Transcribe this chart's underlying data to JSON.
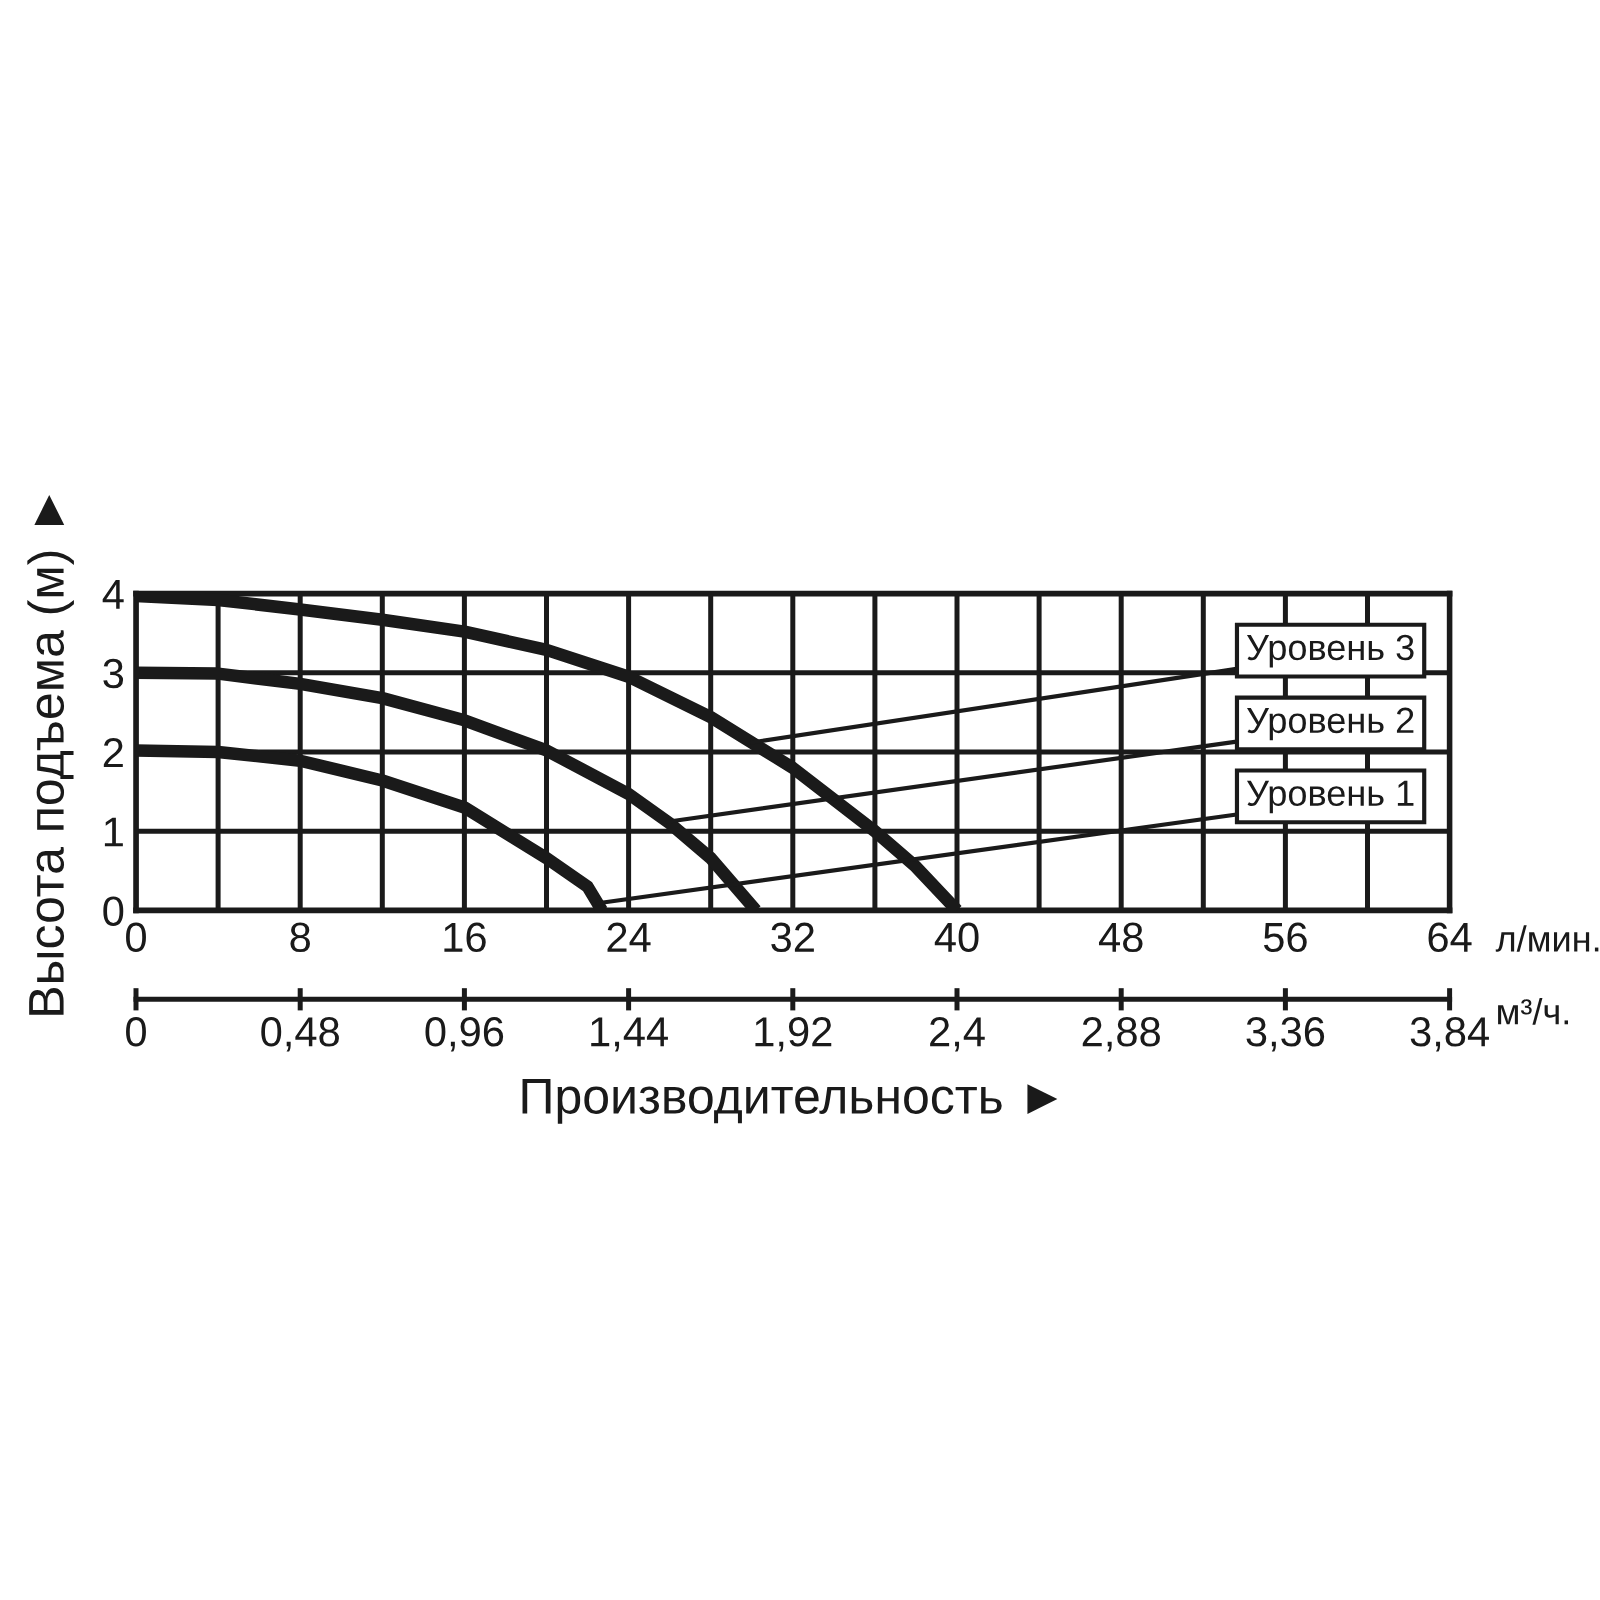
{
  "chart_data": {
    "type": "line",
    "xlabel": "л/мин.",
    "x2label": "м³/ч.",
    "ylabel": "Высота подъема (м) ►",
    "xlim": [
      0,
      64
    ],
    "ylim": [
      0,
      4
    ],
    "xticks": [
      0,
      {
        "value": 4,
        "label": null
      },
      8,
      {
        "value": 12,
        "label": null
      },
      16,
      {
        "value": 20,
        "label": null
      },
      24,
      {
        "value": 28,
        "label": null
      },
      32,
      {
        "value": 36,
        "label": null
      },
      40,
      {
        "value": 44,
        "label": null
      },
      48,
      {
        "value": 52,
        "label": null
      },
      56,
      {
        "value": 60,
        "label": null
      },
      64
    ],
    "yticks": [
      0,
      1,
      2,
      3,
      4
    ],
    "x2lim": [
      0,
      3.84
    ],
    "x2ticks": [
      0,
      {
        "value": 0.48,
        "label": "0,48"
      },
      {
        "value": 0.96,
        "label": "0,96"
      },
      {
        "value": 1.44,
        "label": "1,44"
      },
      {
        "value": 1.92,
        "label": "1,92"
      },
      {
        "value": 2.4,
        "label": "2,4"
      },
      {
        "value": 2.88,
        "label": "2,88"
      },
      {
        "value": 3.36,
        "label": "3,36"
      },
      {
        "value": 3.84,
        "label": "3,84"
      }
    ],
    "grid": true,
    "marker": "none",
    "line_style": "solid",
    "series": [
      {
        "color": "#1a1a1a",
        "x": [
          0,
          4,
          8,
          12,
          16,
          20,
          24,
          28,
          32,
          36,
          38,
          40
        ],
        "values": [
          3.97,
          3.92,
          3.8,
          3.67,
          3.52,
          3.29,
          2.95,
          2.44,
          1.8,
          1.0,
          0.55,
          0
        ]
      },
      {
        "color": "#1a1a1a",
        "x": [
          0,
          4,
          8,
          12,
          16,
          20,
          24,
          26,
          28,
          30.2
        ],
        "values": [
          3.0,
          2.99,
          2.86,
          2.68,
          2.4,
          2.02,
          1.47,
          1.1,
          0.66,
          0
        ]
      },
      {
        "color": "#1a1a1a",
        "x": [
          0,
          4,
          8,
          12,
          16,
          20,
          22,
          22.7
        ],
        "values": [
          2.02,
          2.0,
          1.89,
          1.64,
          1.3,
          0.66,
          0.3,
          0
        ]
      }
    ],
    "annotations": [
      {
        "text": "Уровень 3",
        "x": 30,
        "y": 2.12
      },
      {
        "text": "Уровень 2",
        "x": 25.9,
        "y": 1.12
      },
      {
        "text": "Уровень 1",
        "x": 22.5,
        "y": 0.09
      },
      "Производительность ►"
    ]
  }
}
